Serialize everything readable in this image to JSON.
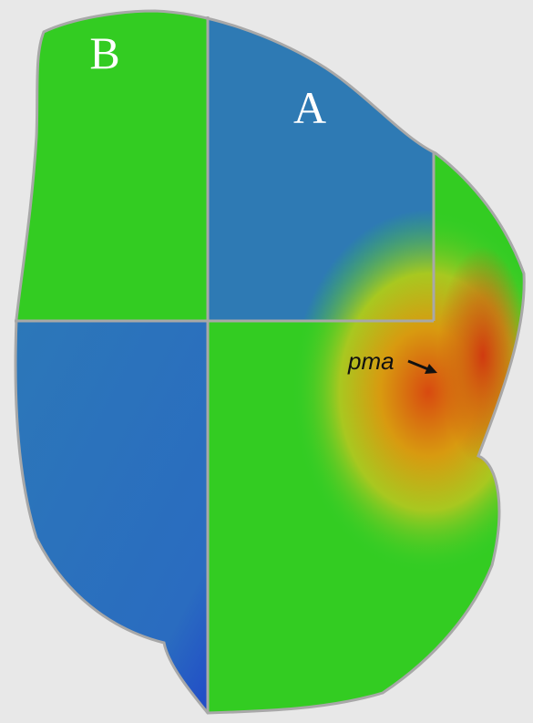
{
  "panels": [
    {
      "label": "B"
    },
    {
      "label": "A"
    }
  ],
  "annotation": "pma"
}
